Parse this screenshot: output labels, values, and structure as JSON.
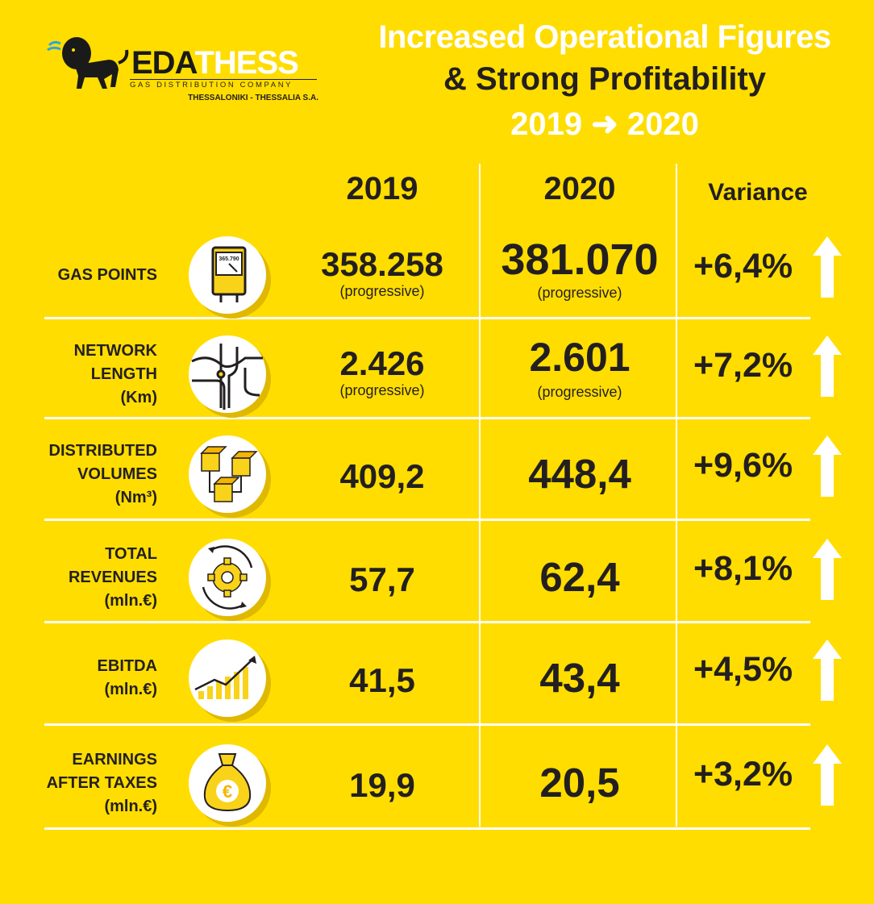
{
  "colors": {
    "background": "#FFDD00",
    "accent_dark": "#231F20",
    "white": "#FFFFFF",
    "icon_yellow": "#F9D21A"
  },
  "logo": {
    "brand_prefix": "EDA",
    "brand_suffix": "THESS",
    "subtitle": "GAS DISTRIBUTION COMPANY",
    "location": "THESSALONIKI - THESSALIA S.A.",
    "icon": "lion-logo-icon"
  },
  "title": {
    "line1": "Increased Operational Figures",
    "line2": "& Strong Profitability",
    "line3": "2019 ➜ 2020"
  },
  "columns": {
    "y2019": "2019",
    "y2020": "2020",
    "variance": "Variance"
  },
  "rows": [
    {
      "label": [
        "GAS POINTS"
      ],
      "icon": "gas-meter-icon",
      "meter_reading": "365.790",
      "v2019": "358.258",
      "v2019_note": "(progressive)",
      "v2020": "381.070",
      "v2020_note": "(progressive)",
      "variance": "+6,4%"
    },
    {
      "label": [
        "NETWORK",
        "LENGTH",
        "(Km)"
      ],
      "icon": "pipe-network-icon",
      "v2019": "2.426",
      "v2019_note": "(progressive)",
      "v2020": "2.601",
      "v2020_note": "(progressive)",
      "variance": "+7,2%"
    },
    {
      "label": [
        "DISTRIBUTED",
        "VOLUMES",
        "(Nm³)"
      ],
      "icon": "cubes-flow-icon",
      "v2019": "409,2",
      "v2020": "448,4",
      "variance": "+9,6%"
    },
    {
      "label": [
        "TOTAL",
        "REVENUES",
        "(mln.€)"
      ],
      "icon": "gear-cycle-icon",
      "v2019": "57,7",
      "v2020": "62,4",
      "variance": "+8,1%"
    },
    {
      "label": [
        "EBITDA",
        "(mln.€)"
      ],
      "icon": "growth-chart-icon",
      "v2019": "41,5",
      "v2020": "43,4",
      "variance": "+4,5%"
    },
    {
      "label": [
        "EARNINGS",
        "AFTER TAXES",
        "(mln.€)"
      ],
      "icon": "money-bag-icon",
      "money_symbol": "€",
      "v2019": "19,9",
      "v2020": "20,5",
      "variance": "+3,2%"
    }
  ]
}
